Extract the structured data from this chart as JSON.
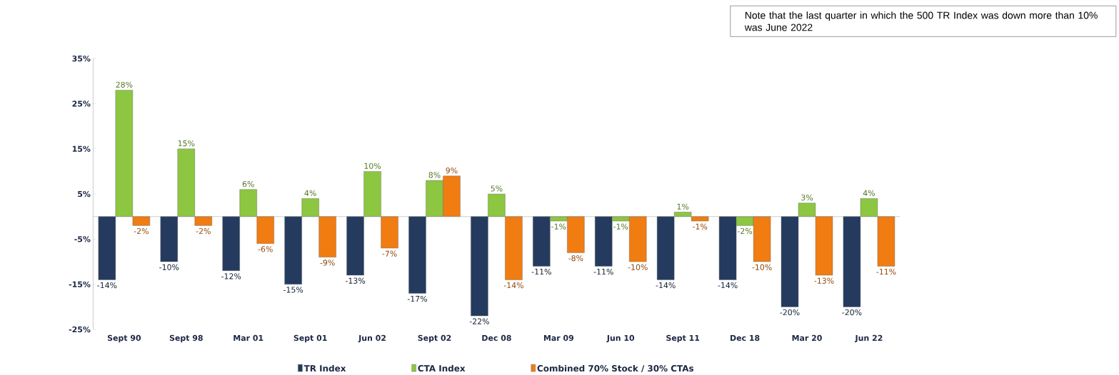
{
  "chart_data": {
    "type": "bar",
    "categories": [
      "Sept 90",
      "Sept 98",
      "Mar 01",
      "Sept 01",
      "Jun 02",
      "Sept 02",
      "Dec 08",
      "Mar 09",
      "Jun 10",
      "Sept 11",
      "Dec 18",
      "Mar 20",
      "Jun 22"
    ],
    "series": [
      {
        "name": "TR Index",
        "color": "#243b5f",
        "values": [
          -14,
          -10,
          -12,
          -15,
          -13,
          -17,
          -22,
          -11,
          -11,
          -14,
          -14,
          -20,
          -20
        ],
        "value_labels": [
          "-14%",
          "-10%",
          "-12%",
          "-15%",
          "-13%",
          "-17%",
          "-22%",
          "-11%",
          "-11%",
          "-14%",
          "-14%",
          "-20%",
          "-20%"
        ]
      },
      {
        "name": "CTA Index",
        "color": "#8dc641",
        "values": [
          28,
          15,
          6,
          4,
          10,
          8,
          5,
          -1,
          -1,
          1,
          -2,
          3,
          4
        ],
        "value_labels": [
          "28%",
          "15%",
          "6%",
          "4%",
          "10%",
          "8%",
          "5%",
          "-1%",
          "-1%",
          "1%",
          "-2%",
          "3%",
          "4%"
        ]
      },
      {
        "name": "Combined 70% Stock / 30% CTAs",
        "color": "#f07c12",
        "values": [
          -2,
          -2,
          -6,
          -9,
          -7,
          9,
          -14,
          -8,
          -10,
          -1,
          -10,
          -13,
          -11
        ],
        "value_labels": [
          "-2%",
          "-2%",
          "-6%",
          "-9%",
          "-7%",
          "9%",
          "-14%",
          "-8%",
          "-10%",
          "-1%",
          "-10%",
          "-13%",
          "-11%"
        ]
      }
    ],
    "ylim": [
      -25,
      35
    ],
    "yticks": [
      {
        "value": -25,
        "label": "-25%"
      },
      {
        "value": -15,
        "label": "-15%"
      },
      {
        "value": -5,
        "label": "-5%"
      },
      {
        "value": 5,
        "label": "5%"
      },
      {
        "value": 15,
        "label": "15%"
      },
      {
        "value": 25,
        "label": "25%"
      },
      {
        "value": 35,
        "label": "35%"
      }
    ],
    "legend": "bottom",
    "grid": false,
    "annotations": [
      "Note that the last quarter in which the 500 TR Index was down more than 10% was June 2022"
    ]
  }
}
